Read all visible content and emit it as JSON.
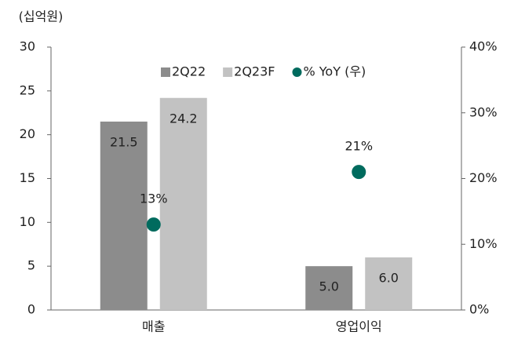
{
  "chart_data": {
    "type": "bar",
    "unit_label": "(십억원)",
    "categories": [
      "매출",
      "영업이익"
    ],
    "series": [
      {
        "name": "2Q22",
        "color": "#8c8c8c",
        "values": [
          21.5,
          5.0
        ],
        "value_labels": [
          "21.5",
          "5.0"
        ]
      },
      {
        "name": "2Q23F",
        "color": "#c2c2c2",
        "values": [
          24.2,
          6.0
        ],
        "value_labels": [
          "24.2",
          "6.0"
        ]
      },
      {
        "name": "% YoY (우)",
        "type": "scatter",
        "axis": "y2",
        "color": "#006b5e",
        "values": [
          13,
          21
        ],
        "value_labels": [
          "13%",
          "21%"
        ]
      }
    ],
    "ylim": [
      0,
      30
    ],
    "yticks": [
      0,
      5,
      10,
      15,
      20,
      25,
      30
    ],
    "y2lim": [
      0,
      40
    ],
    "y2ticks": [
      {
        "value": 0,
        "label": "0%"
      },
      {
        "value": 10,
        "label": "10%"
      },
      {
        "value": 20,
        "label": "20%"
      },
      {
        "value": 30,
        "label": "30%"
      },
      {
        "value": 40,
        "label": "40%"
      }
    ],
    "grid": false,
    "legend": "top"
  }
}
